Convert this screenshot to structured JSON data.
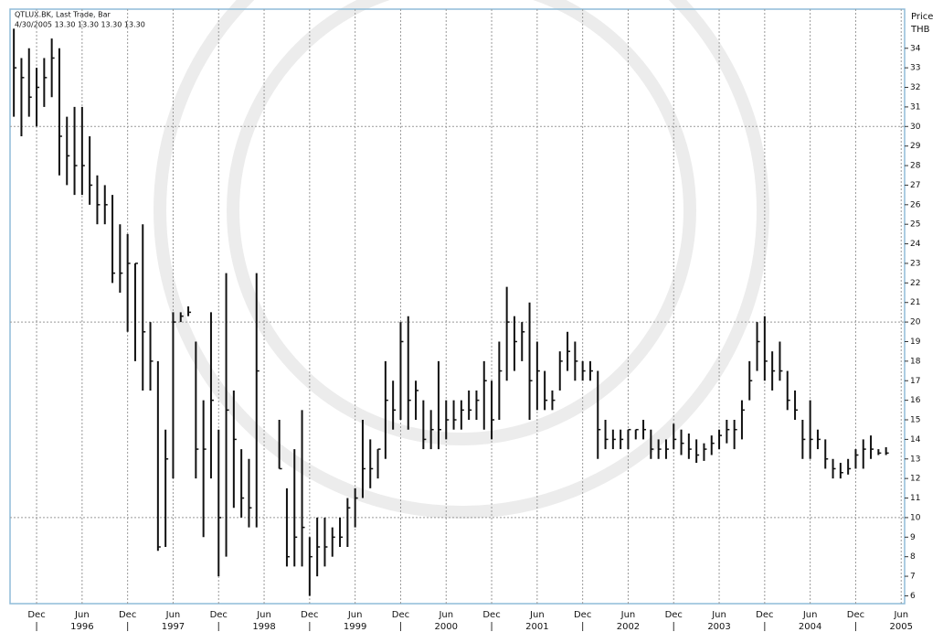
{
  "chart_data": {
    "type": "hlc",
    "title": "QTLUX.BK, Last Trade, Bar",
    "subtitle": "4/30/2005 13.30 13.30 13.30 13.30",
    "y_axis_label": "Price",
    "y_axis_unit": "THB",
    "color": "#111111",
    "grid": true,
    "x": [
      "1995-09",
      "1995-10",
      "1995-11",
      "1995-12",
      "1996-01",
      "1996-02",
      "1996-03",
      "1996-04",
      "1996-05",
      "1996-06",
      "1996-07",
      "1996-08",
      "1996-09",
      "1996-10",
      "1996-11",
      "1996-12",
      "1997-01",
      "1997-02",
      "1997-03",
      "1997-04",
      "1997-05",
      "1997-06",
      "1997-07",
      "1997-08",
      "1997-09",
      "1997-10",
      "1997-11",
      "1997-12",
      "1998-01",
      "1998-02",
      "1998-03",
      "1998-04",
      "1998-05",
      "1998-06",
      "1998-07",
      "1998-08",
      "1998-09",
      "1998-10",
      "1998-11",
      "1998-12",
      "1999-01",
      "1999-02",
      "1999-03",
      "1999-04",
      "1999-05",
      "1999-06",
      "1999-07",
      "1999-08",
      "1999-09",
      "1999-10",
      "1999-11",
      "1999-12",
      "2000-01",
      "2000-02",
      "2000-03",
      "2000-04",
      "2000-05",
      "2000-06",
      "2000-07",
      "2000-08",
      "2000-09",
      "2000-10",
      "2000-11",
      "2000-12",
      "2001-01",
      "2001-02",
      "2001-03",
      "2001-04",
      "2001-05",
      "2001-06",
      "2001-07",
      "2001-08",
      "2001-09",
      "2001-10",
      "2001-11",
      "2001-12",
      "2002-01",
      "2002-02",
      "2002-03",
      "2002-04",
      "2002-05",
      "2002-06",
      "2002-07",
      "2002-08",
      "2002-09",
      "2002-10",
      "2002-11",
      "2002-12",
      "2003-01",
      "2003-02",
      "2003-03",
      "2003-04",
      "2003-05",
      "2003-06",
      "2003-07",
      "2003-08",
      "2003-09",
      "2003-10",
      "2003-11",
      "2003-12",
      "2004-01",
      "2004-02",
      "2004-03",
      "2004-04",
      "2004-05",
      "2004-06",
      "2004-07",
      "2004-08",
      "2004-09",
      "2004-10",
      "2004-11",
      "2004-12",
      "2005-01",
      "2005-02",
      "2005-03",
      "2005-04"
    ],
    "high": [
      35,
      33.5,
      34,
      33,
      33.5,
      34.5,
      34,
      30.5,
      31,
      31,
      29.5,
      27.5,
      27,
      26.5,
      25,
      24.5,
      23,
      25,
      20,
      18,
      14.5,
      20.5,
      20.5,
      20.8,
      19,
      16,
      20.5,
      14.5,
      22.5,
      16.5,
      13.5,
      13,
      22.5,
      null,
      null,
      15,
      11.5,
      13.5,
      15.5,
      9,
      10,
      10,
      9.5,
      10,
      11,
      11.5,
      15,
      14,
      13.5,
      18,
      17,
      20,
      20.3,
      17,
      16,
      15.5,
      18,
      16,
      16,
      16,
      16.5,
      16.5,
      18,
      17,
      19,
      21.8,
      20.3,
      20,
      21,
      19,
      17.5,
      16.5,
      18.5,
      19.5,
      19,
      18,
      18,
      17.5,
      15,
      14.5,
      14.5,
      14.5,
      14.5,
      15,
      14.5,
      14,
      14,
      14.8,
      14.5,
      14.3,
      14,
      13.8,
      14.2,
      14.5,
      15,
      15,
      16,
      18,
      20,
      20.3,
      18.5,
      19,
      17.5,
      16.5,
      15,
      16,
      14.5,
      14,
      13,
      12.8,
      13,
      13.5,
      14,
      14.2,
      13.5,
      13.6
    ],
    "low": [
      30.5,
      29.5,
      30.5,
      30,
      31,
      31.5,
      27.5,
      27,
      26.5,
      26.5,
      26,
      25,
      25,
      22,
      21.5,
      19.5,
      18,
      16.5,
      16.5,
      8.3,
      8.5,
      12,
      20,
      20.3,
      12,
      9,
      12,
      7,
      8,
      10.5,
      10,
      9.5,
      9.5,
      null,
      null,
      12.5,
      7.5,
      7.5,
      7.5,
      6,
      7,
      7.5,
      8,
      8.5,
      8.5,
      9.5,
      11,
      11.5,
      12,
      13,
      14.5,
      15,
      14.5,
      15,
      13.5,
      13.5,
      13.5,
      14,
      14.5,
      14.5,
      15,
      15,
      14.5,
      14,
      15,
      17,
      17.5,
      18,
      15,
      15.5,
      15.5,
      15.5,
      16.5,
      17.5,
      17,
      17,
      17,
      13,
      13.5,
      13.5,
      13.5,
      13.5,
      14,
      14,
      13,
      13,
      13,
      13.5,
      13.2,
      13,
      12.8,
      12.9,
      13.2,
      13.5,
      13.8,
      13.5,
      14,
      16,
      17.5,
      17,
      16.5,
      17,
      15.5,
      15,
      13,
      13,
      13.5,
      12.5,
      12,
      12,
      12.2,
      12.5,
      12.5,
      13,
      13.2,
      13.2
    ],
    "close": [
      33,
      32.5,
      31.5,
      32,
      32.5,
      33.5,
      29.5,
      28.5,
      28,
      28,
      27,
      26,
      26,
      22.5,
      22.5,
      23,
      23,
      19.5,
      18,
      8.5,
      13,
      20,
      20.3,
      20.5,
      13.5,
      13.5,
      16,
      10,
      15.5,
      14,
      11,
      10.5,
      17.5,
      null,
      null,
      12.5,
      8,
      9,
      9.5,
      8,
      8.5,
      8.5,
      9,
      9,
      10.5,
      11,
      12.5,
      12.5,
      13.5,
      16,
      15.5,
      19,
      16,
      16.5,
      14,
      14.5,
      14.5,
      15,
      15,
      15.5,
      15.5,
      16,
      17,
      15,
      17.5,
      20,
      19,
      19.5,
      17,
      17.5,
      16,
      16,
      18,
      18.5,
      18,
      17.5,
      17.5,
      14.5,
      14,
      14,
      14,
      14.5,
      14.5,
      14.5,
      13.5,
      13.5,
      13.5,
      14,
      13.8,
      13.5,
      13.2,
      13.5,
      13.8,
      14.2,
      14.5,
      14.5,
      15.5,
      17,
      19,
      18,
      17.5,
      17.5,
      16,
      15.5,
      14,
      14,
      14,
      13,
      12.5,
      12.3,
      12.5,
      13.2,
      13.5,
      13.5,
      13.3,
      13.3
    ],
    "ylim": [
      5.6,
      36
    ],
    "yticks": [
      6,
      7,
      8,
      9,
      10,
      11,
      12,
      13,
      14,
      15,
      16,
      17,
      18,
      19,
      20,
      21,
      22,
      23,
      24,
      25,
      26,
      27,
      28,
      29,
      30,
      31,
      32,
      33,
      34
    ],
    "xticks": [
      {
        "value": "1995-12",
        "label": "Dec"
      },
      {
        "value": "1996-06",
        "label": "Jun"
      },
      {
        "value": "1996-12",
        "label": "Dec"
      },
      {
        "value": "1997-06",
        "label": "Jun"
      },
      {
        "value": "1997-12",
        "label": "Dec"
      },
      {
        "value": "1998-06",
        "label": "Jun"
      },
      {
        "value": "1998-12",
        "label": "Dec"
      },
      {
        "value": "1999-06",
        "label": "Jun"
      },
      {
        "value": "1999-12",
        "label": "Dec"
      },
      {
        "value": "2000-06",
        "label": "Jun"
      },
      {
        "value": "2000-12",
        "label": "Dec"
      },
      {
        "value": "2001-06",
        "label": "Jun"
      },
      {
        "value": "2001-12",
        "label": "Dec"
      },
      {
        "value": "2002-06",
        "label": "Jun"
      },
      {
        "value": "2002-12",
        "label": "Dec"
      },
      {
        "value": "2003-06",
        "label": "Jun"
      },
      {
        "value": "2003-12",
        "label": "Dec"
      },
      {
        "value": "2004-06",
        "label": "Jun"
      },
      {
        "value": "2004-12",
        "label": "Dec"
      },
      {
        "value": "2005-06",
        "label": "Jun"
      }
    ],
    "year_labels": [
      {
        "value": "1996-06",
        "label": "1996"
      },
      {
        "value": "1997-06",
        "label": "1997"
      },
      {
        "value": "1998-06",
        "label": "1998"
      },
      {
        "value": "1999-06",
        "label": "1999"
      },
      {
        "value": "2000-06",
        "label": "2000"
      },
      {
        "value": "2001-06",
        "label": "2001"
      },
      {
        "value": "2002-06",
        "label": "2002"
      },
      {
        "value": "2003-06",
        "label": "2003"
      },
      {
        "value": "2004-06",
        "label": "2004"
      },
      {
        "value": "2005-06",
        "label": "2005"
      }
    ]
  }
}
